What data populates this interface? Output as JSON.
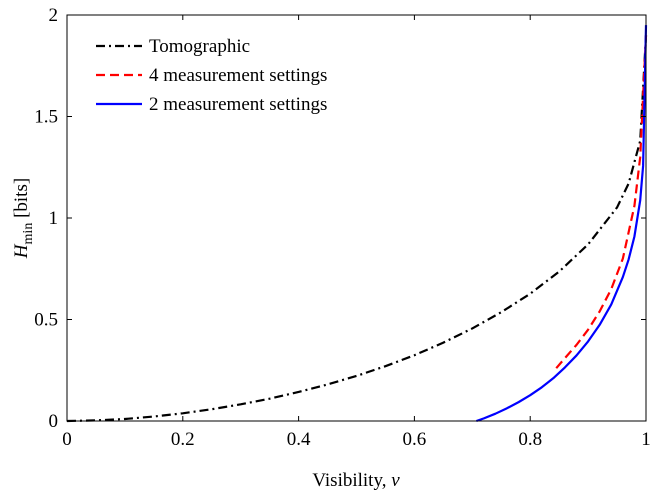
{
  "chart_data": {
    "type": "line",
    "title": "",
    "xlabel": "Visibility, ",
    "xlabel_var": "v",
    "ylabel_main": "H",
    "ylabel_sub": "min",
    "ylabel_unit": " [bits]",
    "xlim": [
      0,
      1
    ],
    "ylim": [
      0,
      2
    ],
    "xticks": [
      0,
      0.2,
      0.4,
      0.6,
      0.8,
      1
    ],
    "xtick_labels": [
      "0",
      "0.2",
      "0.4",
      "0.6",
      "0.8",
      "1"
    ],
    "yticks": [
      0,
      0.5,
      1,
      1.5,
      2
    ],
    "ytick_labels": [
      "0",
      "0.5",
      "1",
      "1.5",
      "2"
    ],
    "grid": false,
    "legend_position": "top-left",
    "series": [
      {
        "name": "Tomographic",
        "color": "#000000",
        "dash": "dash-dot",
        "x": [
          0,
          0.05,
          0.1,
          0.15,
          0.2,
          0.25,
          0.3,
          0.35,
          0.4,
          0.45,
          0.5,
          0.55,
          0.6,
          0.65,
          0.7,
          0.75,
          0.8,
          0.85,
          0.9,
          0.95,
          0.97,
          0.99,
          1.0
        ],
        "y": [
          0,
          0.003,
          0.01,
          0.022,
          0.038,
          0.058,
          0.082,
          0.11,
          0.143,
          0.18,
          0.222,
          0.27,
          0.324,
          0.386,
          0.456,
          0.536,
          0.627,
          0.736,
          0.87,
          1.052,
          1.17,
          1.38,
          1.9
        ]
      },
      {
        "name": "4 measurement settings",
        "color": "#ff0000",
        "dash": "dashed",
        "x": [
          0.845,
          0.86,
          0.88,
          0.9,
          0.92,
          0.94,
          0.96,
          0.98,
          0.99,
          1.0
        ],
        "y": [
          0.26,
          0.31,
          0.375,
          0.45,
          0.54,
          0.65,
          0.8,
          1.06,
          1.3,
          1.9
        ]
      },
      {
        "name": "2 measurement settings",
        "color": "#0000ff",
        "dash": "solid",
        "x": [
          0.7071,
          0.72,
          0.74,
          0.76,
          0.78,
          0.8,
          0.82,
          0.84,
          0.86,
          0.88,
          0.9,
          0.92,
          0.94,
          0.96,
          0.97,
          0.98,
          0.99,
          0.995,
          1.0
        ],
        "y": [
          0,
          0.013,
          0.036,
          0.063,
          0.093,
          0.127,
          0.166,
          0.211,
          0.264,
          0.323,
          0.392,
          0.474,
          0.574,
          0.709,
          0.796,
          0.909,
          1.087,
          1.257,
          1.95
        ]
      }
    ]
  }
}
